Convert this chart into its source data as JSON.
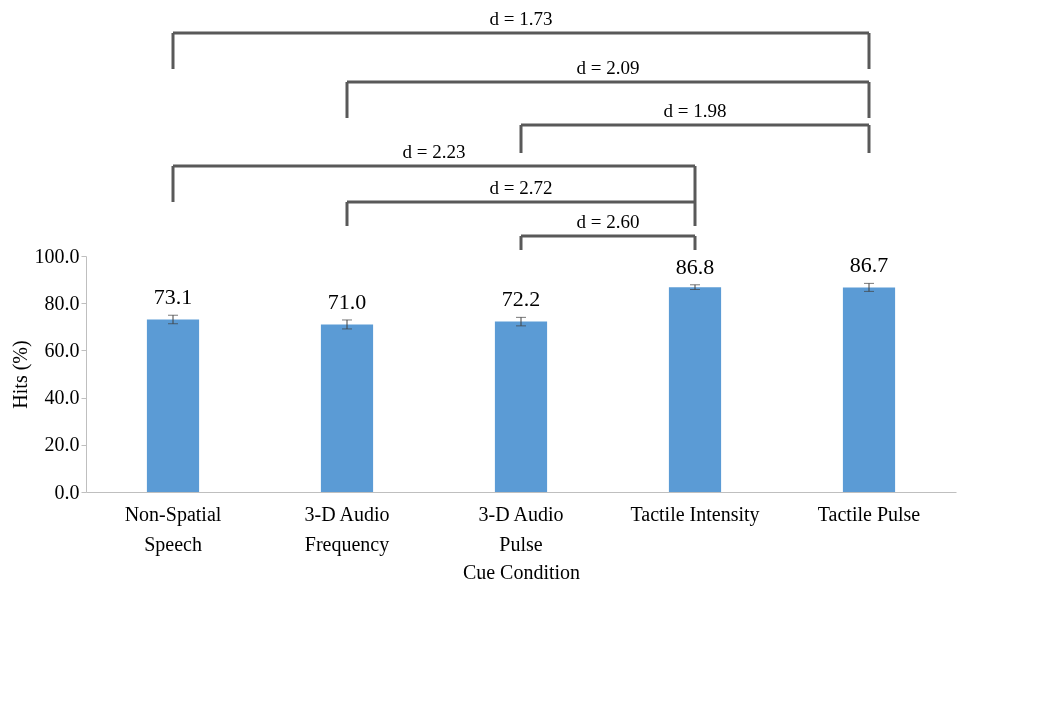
{
  "chart_data": {
    "type": "bar",
    "xlabel": "Cue Condition",
    "ylabel": "Hits (%)",
    "categories": [
      "Non-Spatial\nSpeech",
      "3-D Audio\nFrequency",
      "3-D Audio\nPulse",
      "Tactile Intensity",
      "Tactile Pulse"
    ],
    "values": [
      73.1,
      71.0,
      72.2,
      86.8,
      86.7
    ],
    "errors": [
      1.8,
      1.9,
      1.8,
      1.0,
      1.7
    ],
    "value_labels": [
      "73.1",
      "71.0",
      "72.2",
      "86.8",
      "86.7"
    ],
    "color": "#5b9bd5",
    "ylim": [
      0,
      100
    ],
    "yticks": [
      {
        "value": 0,
        "label": "0.0"
      },
      {
        "value": 20,
        "label": "20.0"
      },
      {
        "value": 40,
        "label": "40.0"
      },
      {
        "value": 60,
        "label": "60.0"
      },
      {
        "value": 80,
        "label": "80.0"
      },
      {
        "value": 100,
        "label": "100.0"
      }
    ],
    "grid": false,
    "annotations": [
      "d = 1.73",
      "d = 2.09",
      "d = 1.98",
      "d = 2.23",
      "d = 2.72",
      "d = 2.60"
    ]
  }
}
